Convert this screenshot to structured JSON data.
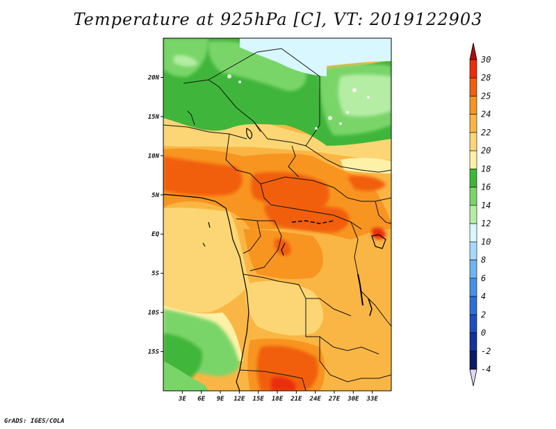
{
  "title": "Temperature at 925hPa [C], VT: 2019122903",
  "credit": "GrADS: IGES/COLA",
  "map": {
    "lon_range": [
      0,
      36
    ],
    "lat_range": [
      -20,
      25
    ],
    "lon_ticks": [
      {
        "value": 3,
        "label": "3E"
      },
      {
        "value": 6,
        "label": "6E"
      },
      {
        "value": 9,
        "label": "9E"
      },
      {
        "value": 12,
        "label": "12E"
      },
      {
        "value": 15,
        "label": "15E"
      },
      {
        "value": 18,
        "label": "18E"
      },
      {
        "value": 21,
        "label": "21E"
      },
      {
        "value": 24,
        "label": "24E"
      },
      {
        "value": 27,
        "label": "27E"
      },
      {
        "value": 30,
        "label": "30E"
      },
      {
        "value": 33,
        "label": "33E"
      }
    ],
    "lat_ticks": [
      {
        "value": 20,
        "label": "20N"
      },
      {
        "value": 15,
        "label": "15N"
      },
      {
        "value": 10,
        "label": "10N"
      },
      {
        "value": 5,
        "label": "5N"
      },
      {
        "value": 0,
        "label": "EQ"
      },
      {
        "value": -5,
        "label": "5S"
      },
      {
        "value": -10,
        "label": "10S"
      },
      {
        "value": -15,
        "label": "15S"
      }
    ]
  },
  "colorbar": {
    "labels": [
      "30",
      "28",
      "25",
      "24",
      "22",
      "20",
      "18",
      "16",
      "14",
      "12",
      "10",
      "8",
      "6",
      "4",
      "2",
      "0",
      "-2",
      "-4"
    ],
    "colors": [
      "#ad0d0d",
      "#ea2e0a",
      "#f15f0d",
      "#f89520",
      "#fab644",
      "#fcd675",
      "#fdf1a7",
      "#3fb63b",
      "#7ad569",
      "#b5eda5",
      "#d8f7ff",
      "#a6d8fb",
      "#70b5f2",
      "#4891e6",
      "#2c6fd6",
      "#1c4fbd",
      "#153398",
      "#0b1a64",
      "#ded8f4"
    ]
  }
}
